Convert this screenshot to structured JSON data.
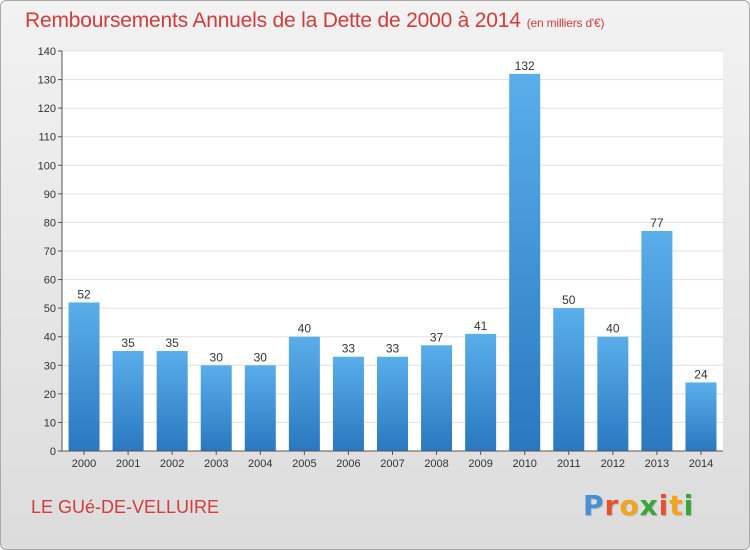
{
  "title": "Remboursements Annuels de la Dette de 2000 à 2014",
  "unit": "(en milliers d'€)",
  "commune": "LE GUé-DE-VELLUIRE",
  "logo": {
    "letters": [
      "P",
      "r",
      "o",
      "x",
      "i",
      "t",
      "i"
    ],
    "colors": [
      "#4a8fd4",
      "#e8502e",
      "#f2a41c",
      "#3aa63a",
      "#e8502e",
      "#f2a41c",
      "#3aa63a"
    ]
  },
  "colors": {
    "bar_top": "#5aaeea",
    "bar_bottom": "#2a78c0",
    "title": "#d23c3c"
  },
  "chart_data": {
    "type": "bar",
    "categories": [
      "2000",
      "2001",
      "2002",
      "2003",
      "2004",
      "2005",
      "2006",
      "2007",
      "2008",
      "2009",
      "2010",
      "2011",
      "2012",
      "2013",
      "2014"
    ],
    "values": [
      52,
      35,
      35,
      30,
      30,
      40,
      33,
      33,
      37,
      41,
      132,
      50,
      40,
      77,
      24
    ],
    "ylim": [
      0,
      140
    ],
    "yticks": [
      0,
      10,
      20,
      30,
      40,
      50,
      60,
      70,
      80,
      90,
      100,
      110,
      120,
      130,
      140
    ],
    "grid": true
  }
}
